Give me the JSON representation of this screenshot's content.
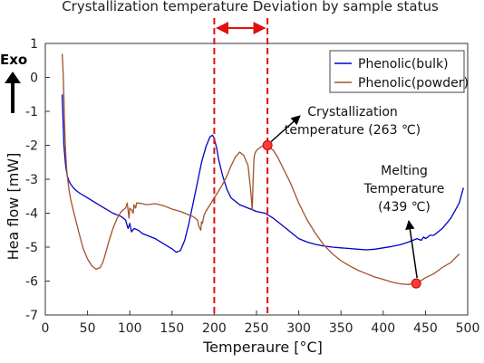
{
  "chart_data": {
    "type": "line",
    "title": "Crystallization temperature Deviation by sample status",
    "xlabel": "Temperaure [°C]",
    "ylabel": "Hea flow [mW]",
    "exo_label": "Exo",
    "xlim": [
      0,
      500
    ],
    "ylim": [
      -7,
      1
    ],
    "xticks": [
      0,
      50,
      100,
      150,
      200,
      250,
      300,
      350,
      400,
      450,
      500
    ],
    "yticks": [
      1,
      0,
      -1,
      -2,
      -3,
      -4,
      -5,
      -6,
      -7
    ],
    "grid": false,
    "legend_position": "top-right",
    "colors": {
      "bulk": "#0000c8",
      "powder": "#a0522d",
      "marker": "#ff3b3b",
      "deviation": "#e01010"
    },
    "series": [
      {
        "name": "Phenolic(bulk)",
        "color": "#0000c8",
        "x": [
          20,
          22,
          24,
          26,
          28,
          30,
          35,
          40,
          50,
          60,
          70,
          80,
          90,
          95,
          98,
          100,
          102,
          105,
          110,
          115,
          120,
          130,
          140,
          150,
          155,
          160,
          165,
          170,
          175,
          180,
          185,
          190,
          195,
          198,
          200,
          203,
          205,
          210,
          215,
          220,
          230,
          240,
          250,
          260,
          270,
          280,
          290,
          300,
          310,
          320,
          330,
          340,
          350,
          360,
          370,
          380,
          390,
          400,
          410,
          420,
          430,
          440,
          445,
          448,
          450,
          453,
          455,
          460,
          470,
          480,
          490,
          495
        ],
        "y": [
          -0.5,
          -2.0,
          -2.6,
          -2.9,
          -3.05,
          -3.15,
          -3.3,
          -3.4,
          -3.55,
          -3.7,
          -3.85,
          -4.0,
          -4.1,
          -4.2,
          -4.45,
          -4.3,
          -4.55,
          -4.45,
          -4.5,
          -4.6,
          -4.65,
          -4.75,
          -4.9,
          -5.05,
          -5.15,
          -5.1,
          -4.8,
          -4.3,
          -3.7,
          -3.1,
          -2.5,
          -2.05,
          -1.75,
          -1.7,
          -1.8,
          -2.1,
          -2.4,
          -2.9,
          -3.3,
          -3.55,
          -3.75,
          -3.85,
          -3.95,
          -4.0,
          -4.15,
          -4.35,
          -4.55,
          -4.75,
          -4.85,
          -4.92,
          -4.97,
          -5.0,
          -5.02,
          -5.04,
          -5.06,
          -5.08,
          -5.06,
          -5.02,
          -4.98,
          -4.93,
          -4.85,
          -4.75,
          -4.8,
          -4.7,
          -4.75,
          -4.7,
          -4.65,
          -4.65,
          -4.45,
          -4.15,
          -3.7,
          -3.25
        ]
      },
      {
        "name": "Phenolic(powder)",
        "color": "#a0522d",
        "x": [
          20,
          21,
          22,
          23,
          24,
          25,
          26,
          28,
          30,
          35,
          40,
          45,
          50,
          55,
          60,
          65,
          68,
          70,
          75,
          80,
          85,
          90,
          95,
          97,
          99,
          100,
          102,
          104,
          105,
          107,
          108,
          110,
          115,
          120,
          130,
          140,
          150,
          160,
          170,
          175,
          180,
          182,
          184,
          185,
          186,
          188,
          190,
          195,
          200,
          205,
          210,
          215,
          220,
          225,
          230,
          235,
          240,
          243,
          245,
          246,
          247,
          248,
          250,
          255,
          260,
          263,
          265,
          270,
          275,
          280,
          290,
          300,
          310,
          320,
          330,
          340,
          350,
          360,
          370,
          380,
          390,
          400,
          410,
          420,
          430,
          435,
          439,
          445,
          450,
          460,
          470,
          480,
          490
        ],
        "y": [
          0.7,
          0.2,
          -0.6,
          -1.5,
          -2.2,
          -2.6,
          -2.9,
          -3.3,
          -3.6,
          -4.1,
          -4.6,
          -5.05,
          -5.35,
          -5.55,
          -5.65,
          -5.6,
          -5.45,
          -5.3,
          -4.85,
          -4.45,
          -4.15,
          -3.95,
          -3.85,
          -3.7,
          -4.15,
          -3.85,
          -3.9,
          -4.0,
          -3.75,
          -3.85,
          -3.7,
          -3.7,
          -3.72,
          -3.75,
          -3.72,
          -3.78,
          -3.88,
          -3.95,
          -4.05,
          -4.1,
          -4.2,
          -4.4,
          -4.5,
          -4.25,
          -4.3,
          -4.05,
          -3.95,
          -3.75,
          -3.55,
          -3.35,
          -3.15,
          -2.9,
          -2.6,
          -2.35,
          -2.2,
          -2.3,
          -2.6,
          -3.3,
          -3.9,
          -3.0,
          -2.4,
          -2.25,
          -2.15,
          -2.05,
          -2.0,
          -2.0,
          -2.05,
          -2.15,
          -2.35,
          -2.6,
          -3.1,
          -3.7,
          -4.2,
          -4.6,
          -4.95,
          -5.2,
          -5.4,
          -5.55,
          -5.68,
          -5.78,
          -5.88,
          -5.95,
          -6.03,
          -6.08,
          -6.1,
          -6.08,
          -6.05,
          -5.98,
          -5.9,
          -5.78,
          -5.6,
          -5.45,
          -5.2
        ]
      }
    ],
    "deviation_lines": {
      "x": [
        200,
        263
      ]
    },
    "annotations": [
      {
        "lines": [
          "Crystallization",
          "temperature (263 ℃)"
        ],
        "point": [
          263,
          -2.0
        ]
      },
      {
        "lines": [
          "Melting",
          "Temperature",
          "(439 ℃)"
        ],
        "point": [
          439,
          -6.07
        ]
      }
    ]
  }
}
